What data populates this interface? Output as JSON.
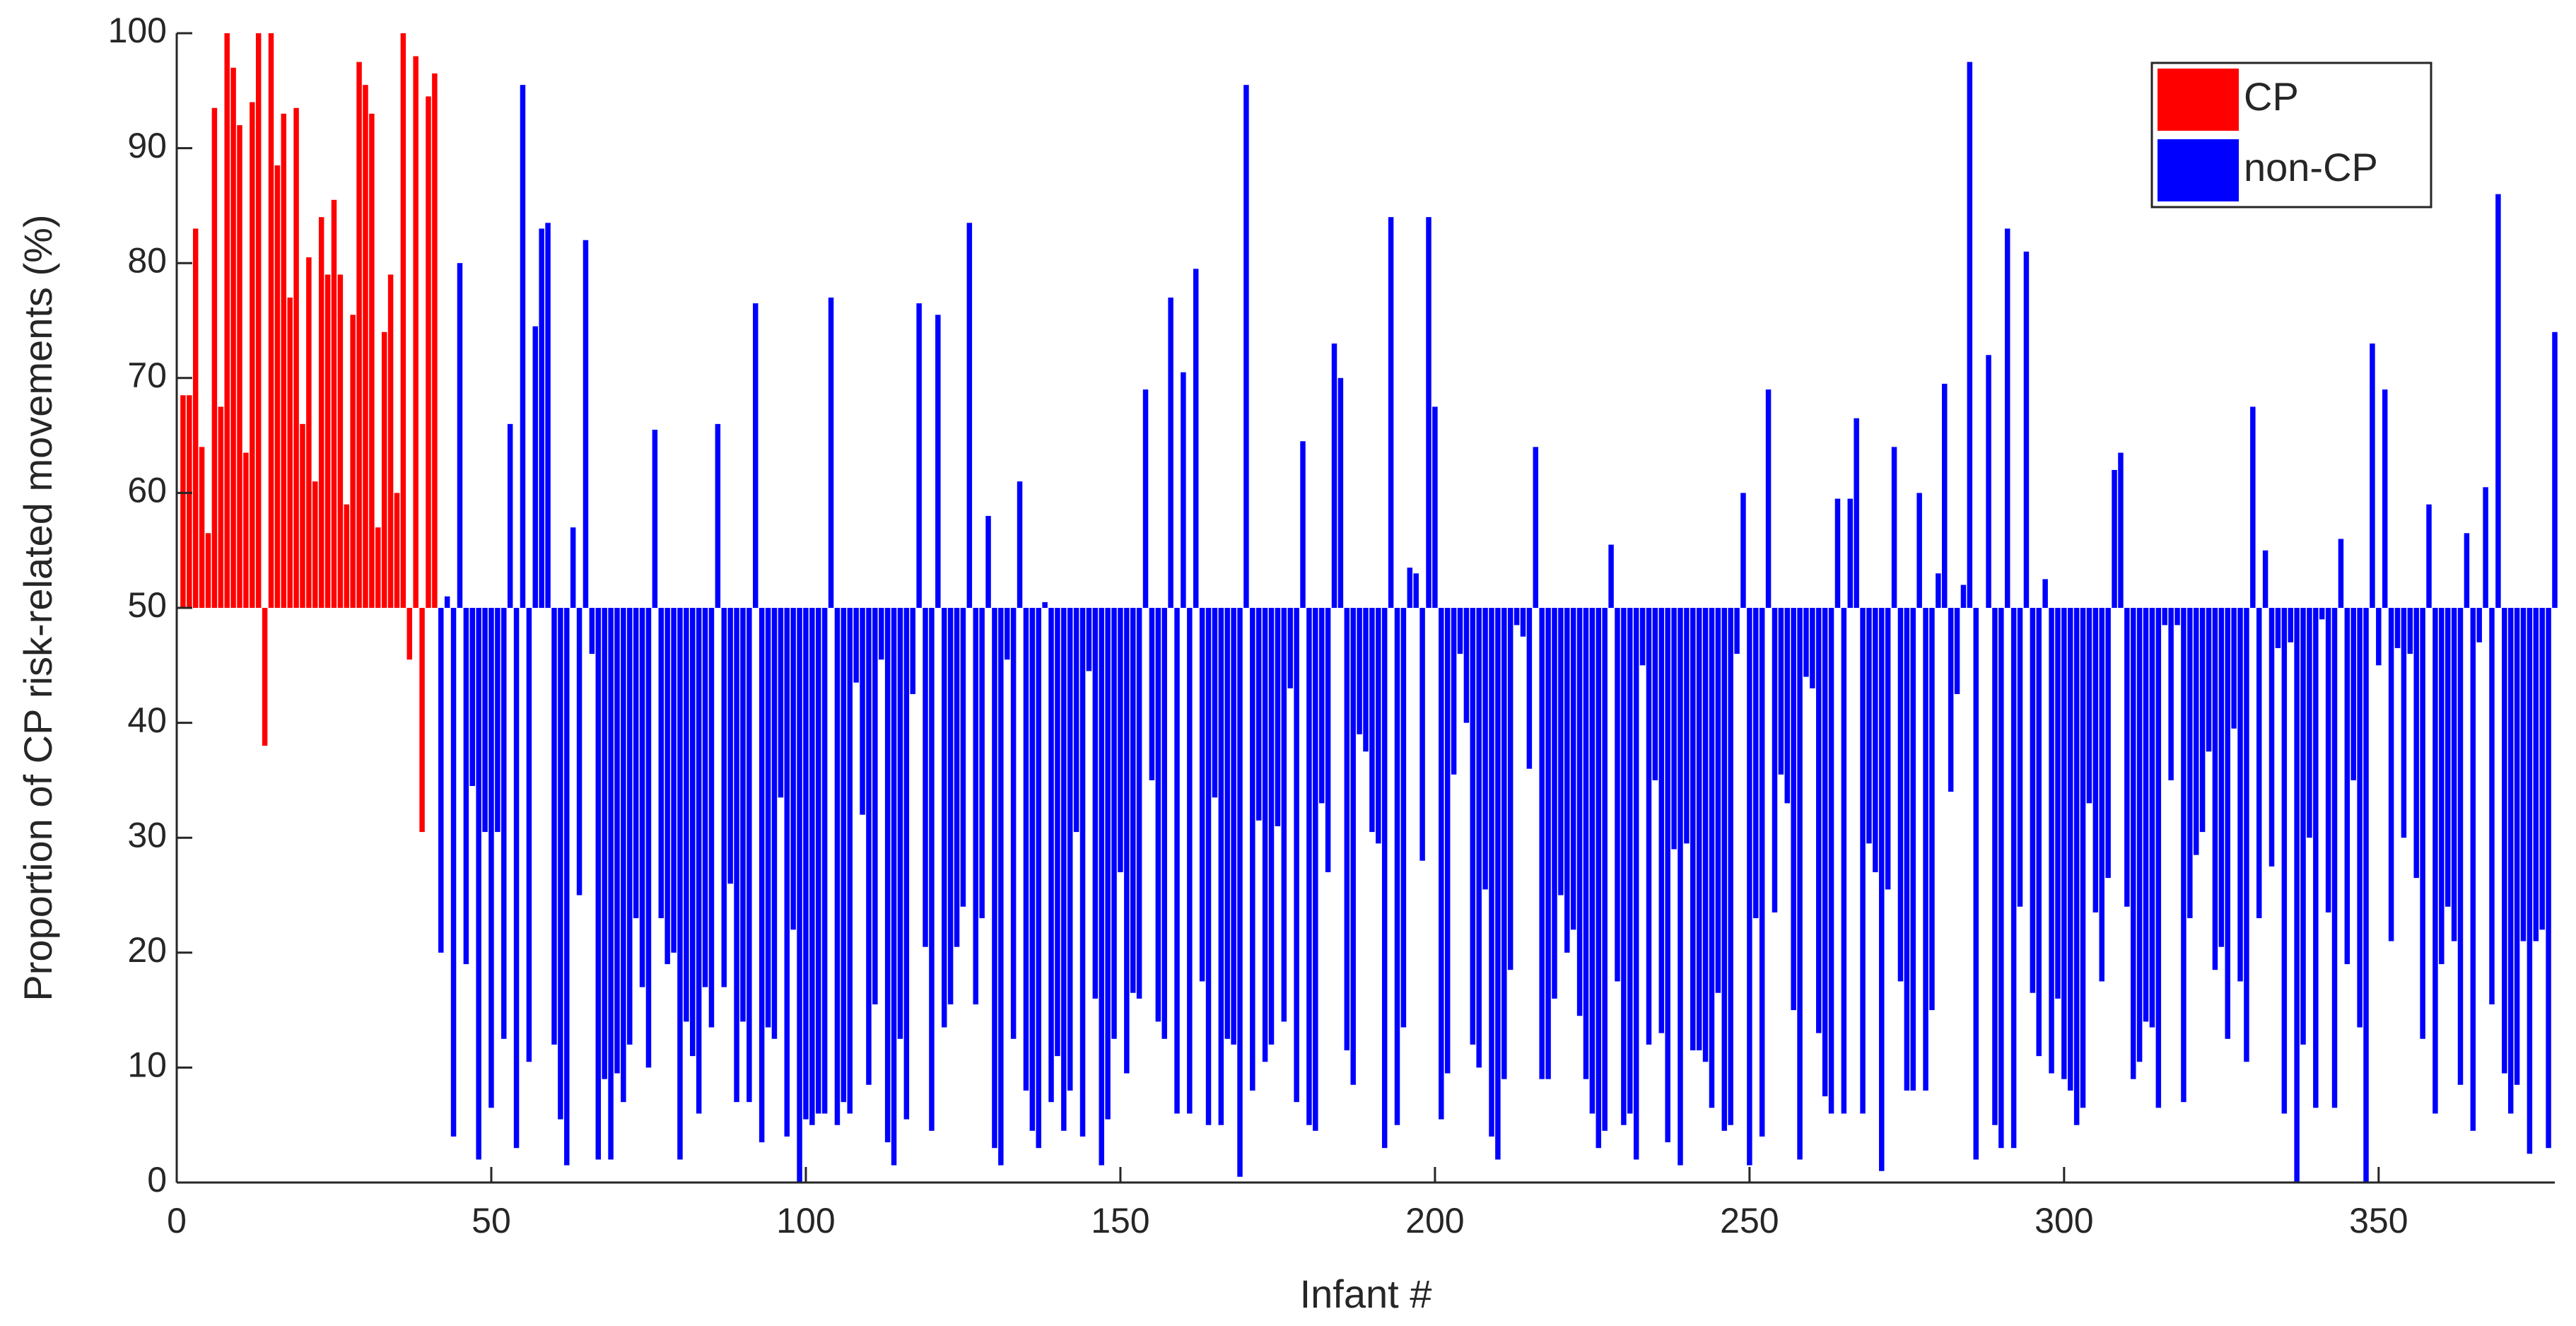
{
  "chart_data": {
    "type": "bar",
    "xlabel": "Infant #",
    "ylabel": "Proportion of CP risk-related movements (%)",
    "baseline": 50,
    "xlim": [
      0,
      378
    ],
    "xticks": [
      0,
      50,
      100,
      150,
      200,
      250,
      300,
      350
    ],
    "ylim": [
      0,
      100
    ],
    "yticks": [
      0,
      10,
      20,
      30,
      40,
      50,
      60,
      70,
      80,
      90,
      100
    ],
    "legend": "top-right",
    "series": [
      {
        "name": "CP",
        "color": "#ff0000",
        "x": [
          1,
          2,
          3,
          4,
          5,
          6,
          7,
          8,
          9,
          10,
          11,
          12,
          13,
          14,
          15,
          16,
          17,
          18,
          19,
          20,
          21,
          22,
          23,
          24,
          25,
          26,
          27,
          28,
          29,
          30,
          31,
          32,
          33,
          34,
          35,
          36,
          37,
          38,
          39,
          40,
          41
        ],
        "values": [
          68.5,
          68.5,
          83,
          64,
          56.5,
          93.5,
          67.5,
          100,
          97,
          92,
          63.5,
          94,
          100,
          38,
          100,
          88.5,
          93,
          77,
          93.5,
          66,
          80.5,
          61,
          84,
          79,
          85.5,
          79,
          59,
          75.5,
          97.5,
          95.5,
          93,
          57,
          74,
          79,
          60,
          100,
          45.5,
          98,
          30.5,
          94.5,
          96.5
        ]
      },
      {
        "name": "non-CP",
        "color": "#0000ff",
        "x": [
          42,
          43,
          44,
          45,
          46,
          47,
          48,
          49,
          50,
          51,
          52,
          53,
          54,
          55,
          56,
          57,
          58,
          59,
          60,
          61,
          62,
          63,
          64,
          65,
          66,
          67,
          68,
          69,
          70,
          71,
          72,
          73,
          74,
          75,
          76,
          77,
          78,
          79,
          80,
          81,
          82,
          83,
          84,
          85,
          86,
          87,
          88,
          89,
          90,
          91,
          92,
          93,
          94,
          95,
          96,
          97,
          98,
          99,
          100,
          101,
          102,
          103,
          104,
          105,
          106,
          107,
          108,
          109,
          110,
          111,
          112,
          113,
          114,
          115,
          116,
          117,
          118,
          119,
          120,
          121,
          122,
          123,
          124,
          125,
          126,
          127,
          128,
          129,
          130,
          131,
          132,
          133,
          134,
          135,
          136,
          137,
          138,
          139,
          140,
          141,
          142,
          143,
          144,
          145,
          146,
          147,
          148,
          149,
          150,
          151,
          152,
          153,
          154,
          155,
          156,
          157,
          158,
          159,
          160,
          161,
          162,
          163,
          164,
          165,
          166,
          167,
          168,
          169,
          170,
          171,
          172,
          173,
          174,
          175,
          176,
          177,
          178,
          179,
          180,
          181,
          182,
          183,
          184,
          185,
          186,
          187,
          188,
          189,
          190,
          191,
          192,
          193,
          194,
          195,
          196,
          197,
          198,
          199,
          200,
          201,
          202,
          203,
          204,
          205,
          206,
          207,
          208,
          209,
          210,
          211,
          212,
          213,
          214,
          215,
          216,
          217,
          218,
          219,
          220,
          221,
          222,
          223,
          224,
          225,
          226,
          227,
          228,
          229,
          230,
          231,
          232,
          233,
          234,
          235,
          236,
          237,
          238,
          239,
          240,
          241,
          242,
          243,
          244,
          245,
          246,
          247,
          248,
          249,
          250,
          251,
          252,
          253,
          254,
          255,
          256,
          257,
          258,
          259,
          260,
          261,
          262,
          263,
          264,
          265,
          266,
          267,
          268,
          269,
          270,
          271,
          272,
          273,
          274,
          275,
          276,
          277,
          278,
          279,
          280,
          281,
          282,
          283,
          284,
          285,
          286,
          287,
          288,
          289,
          290,
          291,
          292,
          293,
          294,
          295,
          296,
          297,
          298,
          299,
          300,
          301,
          302,
          303,
          304,
          305,
          306,
          307,
          308,
          309,
          310,
          311,
          312,
          313,
          314,
          315,
          316,
          317,
          318,
          319,
          320,
          321,
          322,
          323,
          324,
          325,
          326,
          327,
          328,
          329,
          330,
          331,
          332,
          333,
          334,
          335,
          336,
          337,
          338,
          339,
          340,
          341,
          342,
          343,
          344,
          345,
          346,
          347,
          348,
          349,
          350,
          351,
          352,
          353,
          354,
          355,
          356,
          357,
          358,
          359,
          360,
          361,
          362,
          363,
          364,
          365,
          366,
          367,
          368,
          369,
          370,
          371,
          372,
          373,
          374,
          375,
          376,
          377,
          378
        ],
        "values": [
          20,
          51,
          4,
          80,
          19,
          34.5,
          2,
          30.5,
          6.5,
          30.5,
          12.5,
          66,
          3,
          95.5,
          10.5,
          74.5,
          83,
          83.5,
          12,
          5.5,
          1.5,
          57,
          25,
          82,
          46,
          2,
          9,
          2,
          9.5,
          7,
          12,
          23,
          17,
          10,
          65.5,
          23,
          19,
          20,
          2,
          14,
          11,
          6,
          17,
          13.5,
          66,
          17,
          26,
          7,
          14,
          7,
          76.5,
          3.5,
          13.5,
          12.5,
          33.5,
          4,
          22,
          0,
          5.5,
          5,
          6,
          6,
          77,
          5,
          7,
          6,
          43.5,
          32,
          8.5,
          15.5,
          45.5,
          3.5,
          1.5,
          12.5,
          5.5,
          42.5,
          76.5,
          20.5,
          4.5,
          75.5,
          13.5,
          15.5,
          20.5,
          24,
          83.5,
          15.5,
          23,
          58,
          3,
          1.5,
          45.5,
          12.5,
          61,
          8,
          4.5,
          3,
          50.5,
          7,
          11,
          4.5,
          8,
          30.5,
          4,
          44.5,
          16,
          1.5,
          5.5,
          12.5,
          27,
          9.5,
          16.5,
          16,
          69,
          35,
          14,
          12.5,
          77,
          6,
          70.5,
          6,
          79.5,
          17.5,
          5,
          33.5,
          5,
          12.5,
          12,
          0.5,
          95.5,
          8,
          31.5,
          10.5,
          12,
          31,
          14,
          43,
          7,
          64.5,
          5,
          4.5,
          33,
          27,
          73,
          70,
          11.5,
          8.5,
          39,
          37.5,
          30.5,
          29.5,
          3,
          84,
          5,
          13.5,
          53.5,
          53,
          28,
          84,
          67.5,
          5.5,
          9.5,
          35.5,
          46,
          40,
          12,
          10,
          25.5,
          4,
          2,
          9,
          18.5,
          48.5,
          47.5,
          36,
          64,
          9,
          9,
          16,
          25,
          20,
          22,
          14.5,
          9,
          6,
          3,
          4.5,
          55.5,
          17.5,
          5,
          6,
          2,
          45,
          12,
          35,
          13,
          3.5,
          29,
          1.5,
          29.5,
          11.5,
          11.5,
          10.5,
          6.5,
          16.5,
          4.5,
          5,
          46,
          60,
          1.5,
          23,
          4,
          69,
          23.5,
          35.5,
          33,
          15,
          2,
          44,
          43,
          13,
          7.5,
          6,
          59.5,
          6,
          59.5,
          66.5,
          6,
          29.5,
          27,
          1,
          25.5,
          64,
          17.5,
          8,
          8,
          60,
          8,
          15,
          53,
          69.5,
          34,
          42.5,
          52,
          97.5,
          2,
          50,
          72,
          5,
          3,
          83,
          3,
          24,
          81,
          16.5,
          11,
          52.5,
          9.5,
          16,
          9,
          8,
          5,
          6.5,
          33,
          23.5,
          17.5,
          26.5,
          62,
          63.5,
          24,
          9,
          10.5,
          14,
          13.5,
          6.5,
          48.5,
          35,
          48.5,
          7,
          23,
          28.5,
          30.5,
          37.5,
          18.5,
          20.5,
          12.5,
          39.5,
          17.5,
          10.5,
          67.5,
          23,
          55,
          27.5,
          46.5,
          6,
          47,
          0,
          12,
          30,
          6.5,
          49,
          23.5,
          6.5,
          56,
          19,
          35,
          13.5,
          0,
          73,
          45,
          69,
          21,
          46.5,
          30,
          46,
          26.5,
          12.5,
          59,
          6,
          19,
          24,
          21,
          8.5,
          56.5,
          4.5,
          47,
          60.5,
          15.5,
          86,
          9.5,
          6,
          8.5,
          21,
          2.5,
          21,
          22,
          3,
          74
        ]
      }
    ]
  }
}
